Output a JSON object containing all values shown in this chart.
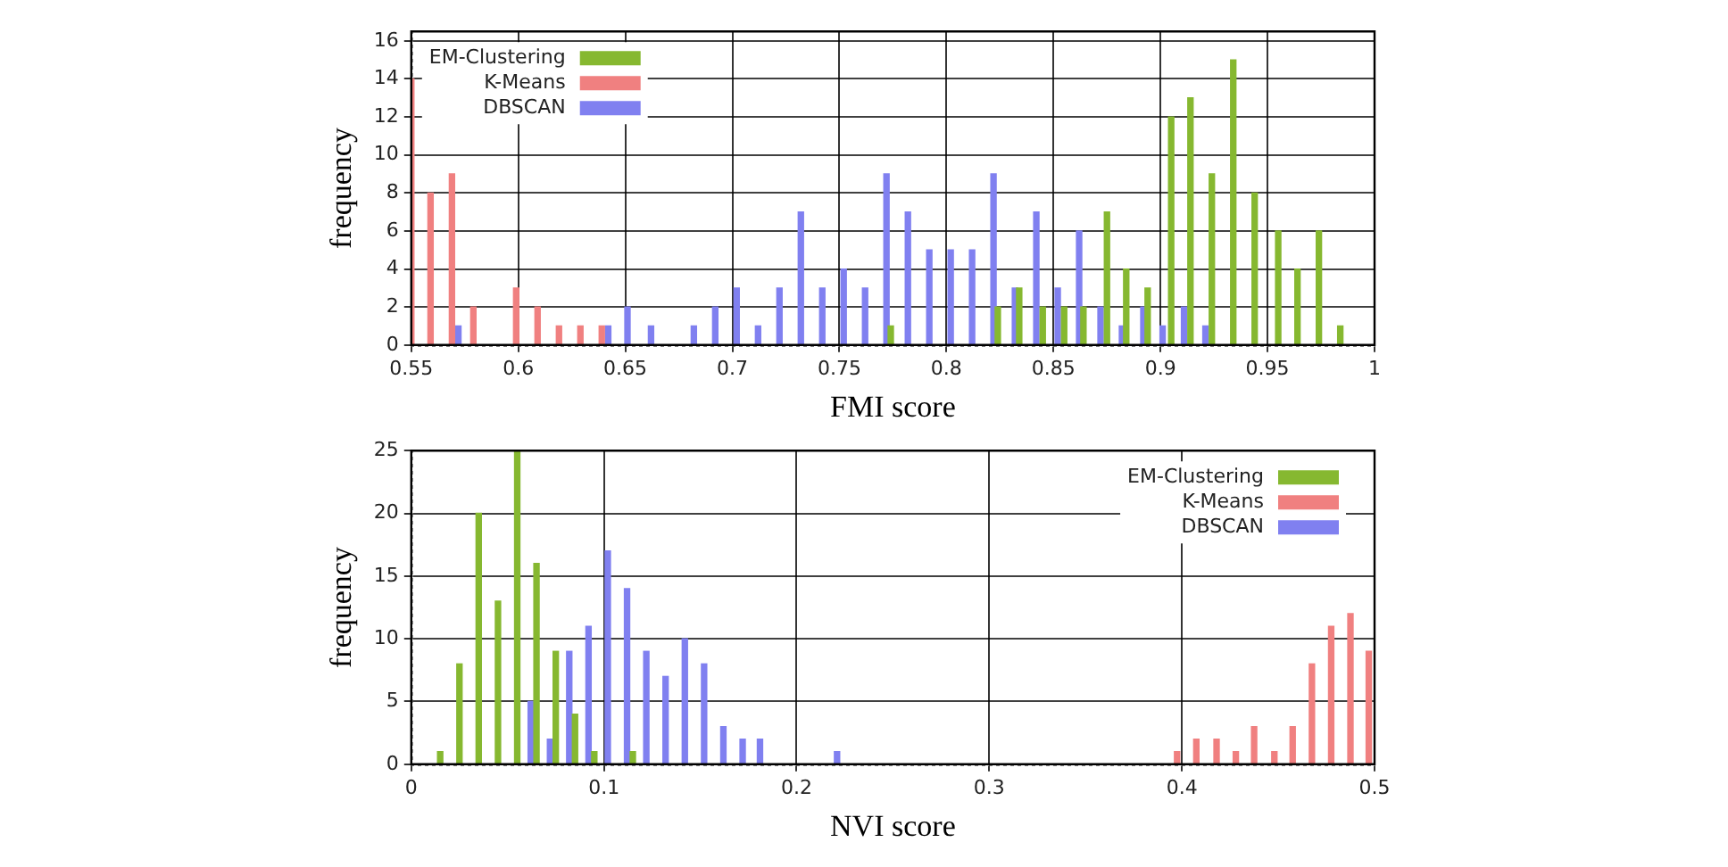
{
  "chart_data": [
    {
      "type": "bar",
      "xlabel": "FMI score",
      "ylabel": "frequency",
      "xlim": [
        0.55,
        1
      ],
      "xticks": [
        0.55,
        0.6,
        0.65,
        0.7,
        0.75,
        0.8,
        0.85,
        0.9,
        0.95,
        1
      ],
      "ylim": [
        0,
        16.5
      ],
      "yticks": [
        0,
        2,
        4,
        6,
        8,
        10,
        12,
        14,
        16
      ],
      "grid": true,
      "legend": "top left",
      "series": [
        {
          "name": "EM-Clustering",
          "color": "#86b830",
          "x": [
            0.774,
            0.824,
            0.834,
            0.845,
            0.855,
            0.864,
            0.875,
            0.884,
            0.894,
            0.905,
            0.914,
            0.924,
            0.934,
            0.944,
            0.955,
            0.964,
            0.974,
            0.984
          ],
          "values": [
            1,
            2,
            3,
            2,
            2,
            2,
            7,
            4,
            3,
            12,
            13,
            9,
            15,
            8,
            6,
            4,
            6,
            1
          ]
        },
        {
          "name": "K-Means",
          "color": "#f08080",
          "x": [
            0.55,
            0.559,
            0.569,
            0.579,
            0.599,
            0.609,
            0.619,
            0.629,
            0.639
          ],
          "values": [
            14,
            8,
            9,
            2,
            3,
            2,
            1,
            1,
            1
          ]
        },
        {
          "name": "DBSCAN",
          "color": "#8080f0",
          "x": [
            0.572,
            0.642,
            0.651,
            0.662,
            0.682,
            0.692,
            0.702,
            0.712,
            0.722,
            0.732,
            0.742,
            0.752,
            0.762,
            0.772,
            0.782,
            0.792,
            0.802,
            0.812,
            0.822,
            0.832,
            0.842,
            0.852,
            0.862,
            0.872,
            0.882,
            0.892,
            0.901,
            0.911,
            0.921
          ],
          "values": [
            1,
            1,
            2,
            1,
            1,
            2,
            3,
            1,
            3,
            7,
            3,
            4,
            3,
            9,
            7,
            5,
            5,
            5,
            9,
            3,
            7,
            3,
            6,
            2,
            1,
            2,
            1,
            2,
            1
          ]
        }
      ]
    },
    {
      "type": "bar",
      "xlabel": "NVI score",
      "ylabel": "frequency",
      "xlim": [
        0,
        0.5
      ],
      "xticks": [
        0,
        0.1,
        0.2,
        0.3,
        0.4,
        0.5
      ],
      "ylim": [
        0,
        25
      ],
      "yticks": [
        0,
        5,
        10,
        15,
        20,
        25
      ],
      "grid": true,
      "legend": "top right",
      "series": [
        {
          "name": "EM-Clustering",
          "color": "#86b830",
          "x": [
            0.015,
            0.025,
            0.035,
            0.045,
            0.055,
            0.065,
            0.075,
            0.085,
            0.095,
            0.115
          ],
          "values": [
            1,
            8,
            20,
            13,
            25,
            16,
            9,
            4,
            1,
            1
          ]
        },
        {
          "name": "K-Means",
          "color": "#f08080",
          "x": [
            0.3975,
            0.4075,
            0.418,
            0.428,
            0.4375,
            0.448,
            0.4575,
            0.4675,
            0.4775,
            0.4875,
            0.497
          ],
          "values": [
            1,
            2,
            2,
            1,
            3,
            1,
            3,
            8,
            11,
            12,
            9
          ]
        },
        {
          "name": "DBSCAN",
          "color": "#8080f0",
          "x": [
            0.062,
            0.072,
            0.082,
            0.092,
            0.102,
            0.112,
            0.122,
            0.132,
            0.142,
            0.152,
            0.162,
            0.172,
            0.181,
            0.221
          ],
          "values": [
            5,
            2,
            9,
            11,
            17,
            14,
            9,
            7,
            10,
            8,
            3,
            2,
            2,
            1
          ]
        }
      ]
    }
  ]
}
